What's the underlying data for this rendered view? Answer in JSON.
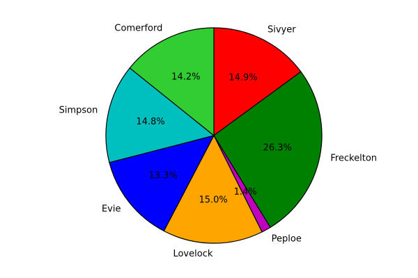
{
  "chart_data": {
    "type": "pie",
    "title": "",
    "start_angle_deg": 90,
    "direction": "clockwise",
    "slices": [
      {
        "label": "Sivyer",
        "value": 14.9,
        "pct_text": "14.9%",
        "color": "#ff0000"
      },
      {
        "label": "Freckelton",
        "value": 26.3,
        "pct_text": "26.3%",
        "color": "#008000"
      },
      {
        "label": "Peploe",
        "value": 1.4,
        "pct_text": "1.4%",
        "color": "#bf00bf"
      },
      {
        "label": "Lovelock",
        "value": 15.0,
        "pct_text": "15.0%",
        "color": "#ffa500"
      },
      {
        "label": "Evie",
        "value": 13.3,
        "pct_text": "13.3%",
        "color": "#0000ff"
      },
      {
        "label": "Simpson",
        "value": 14.8,
        "pct_text": "14.8%",
        "color": "#00bfbf"
      },
      {
        "label": "Comerford",
        "value": 14.2,
        "pct_text": "14.2%",
        "color": "#32cd32"
      }
    ]
  }
}
